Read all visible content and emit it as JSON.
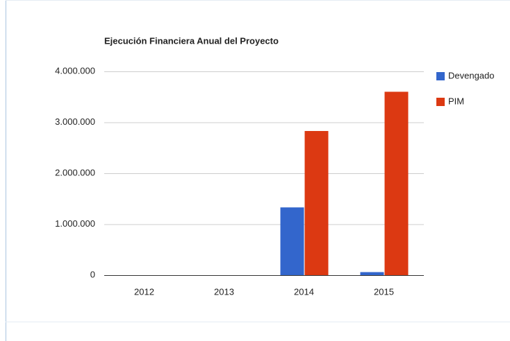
{
  "chart_data": {
    "type": "bar",
    "title": "Ejecución Financiera Anual del Proyecto",
    "categories": [
      "2012",
      "2013",
      "2014",
      "2015"
    ],
    "series": [
      {
        "name": "Devengado",
        "color": "#3366cc",
        "values": [
          0,
          0,
          1330000,
          60000
        ]
      },
      {
        "name": "PIM",
        "color": "#dc3912",
        "values": [
          0,
          0,
          2830000,
          3600000
        ]
      }
    ],
    "ylim": [
      0,
      4000000
    ],
    "yticks": [
      0,
      {
        "value": 1000000,
        "label": "1.000.000"
      },
      {
        "value": 2000000,
        "label": "2.000.000"
      },
      {
        "value": 3000000,
        "label": "3.000.000"
      },
      {
        "value": 4000000,
        "label": "4.000.000"
      }
    ],
    "grid": true,
    "legend": "right"
  }
}
